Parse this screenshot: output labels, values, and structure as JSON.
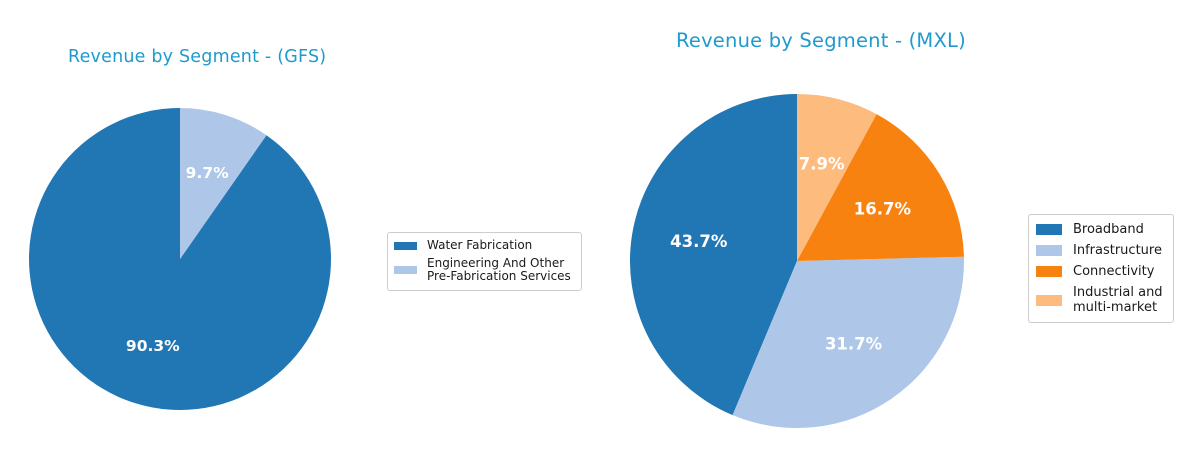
{
  "page": {
    "background_color": "#ffffff",
    "title_color": "#1f9acd",
    "pct_label_color": "#ffffff",
    "legend_text_color": "#1a1a1a"
  },
  "chart_data": [
    {
      "type": "pie",
      "title": "Revenue by Segment - (GFS)",
      "title_color": "#1f9acd",
      "start_angle": 90,
      "direction": "counterclockwise",
      "label_radius": 0.6,
      "label_color": "#ffffff",
      "legend_position": "right",
      "segments": [
        {
          "label": "Water Fabrication",
          "value": 90.3,
          "pct_label": "90.3%",
          "color": "#2176b4"
        },
        {
          "label": "Engineering And Other\nPre-Fabrication Services",
          "value": 9.7,
          "pct_label": "9.7%",
          "color": "#aec7e8"
        }
      ]
    },
    {
      "type": "pie",
      "title": "Revenue by Segment - (MXL)",
      "title_color": "#1f9acd",
      "start_angle": 90,
      "direction": "counterclockwise",
      "label_radius": 0.6,
      "label_color": "#ffffff",
      "legend_position": "right",
      "segments": [
        {
          "label": "Broadband",
          "value": 43.7,
          "pct_label": "43.7%",
          "color": "#2176b4"
        },
        {
          "label": "Infrastructure",
          "value": 31.7,
          "pct_label": "31.7%",
          "color": "#aec7e8"
        },
        {
          "label": "Connectivity",
          "value": 16.7,
          "pct_label": "16.7%",
          "color": "#f8820f"
        },
        {
          "label": "Industrial and\nmulti-market",
          "value": 7.9,
          "pct_label": "7.9%",
          "color": "#fdbb7d"
        }
      ]
    }
  ]
}
